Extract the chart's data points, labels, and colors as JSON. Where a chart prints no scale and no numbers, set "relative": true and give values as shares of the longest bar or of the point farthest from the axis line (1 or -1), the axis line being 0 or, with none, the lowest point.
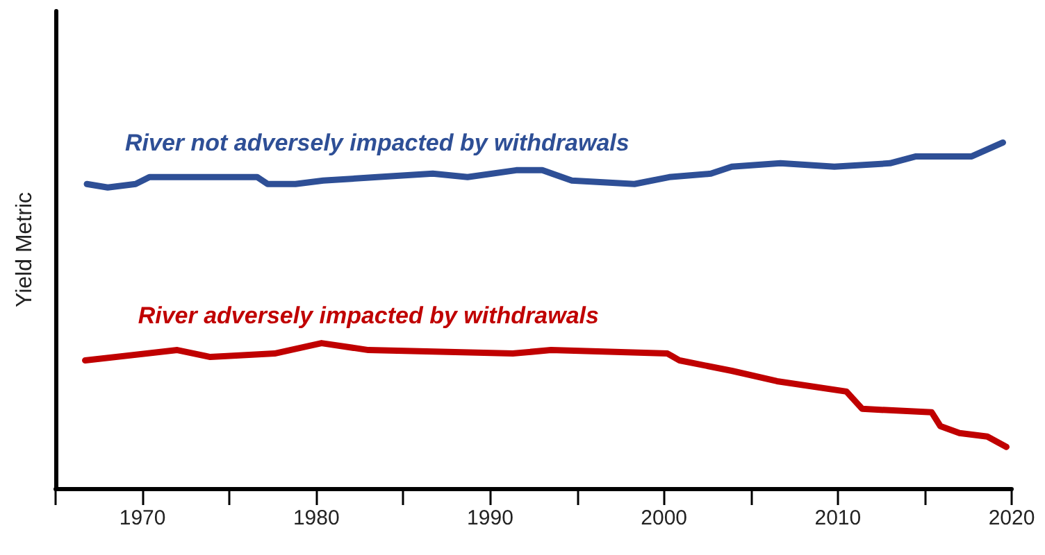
{
  "chart_data": {
    "type": "line",
    "ylabel": "Yield Metric",
    "relative": true,
    "xlim": [
      1965,
      2020
    ],
    "xticks": [
      {
        "value": 1965,
        "label": null
      },
      1970,
      {
        "value": 1975,
        "label": null
      },
      1980,
      {
        "value": 1985,
        "label": null
      },
      1990,
      {
        "value": 1995,
        "label": null
      },
      2000,
      {
        "value": 2005,
        "label": null
      },
      2010,
      {
        "value": 2015,
        "label": null
      },
      2020
    ],
    "marker": "none",
    "line_style": "solid",
    "grid": false,
    "legend": false,
    "series": [
      {
        "name": "River not adversely impacted by withdrawals",
        "color": "#2e4f96",
        "x": [
          1966.8,
          1968,
          1969.6,
          1970.4,
          1974,
          1976.6,
          1977.2,
          1978.8,
          1980.4,
          1983.5,
          1986.7,
          1988.7,
          1991.5,
          1993,
          1994.7,
          1998.3,
          2000.3,
          2002.7,
          2003.9,
          2006.7,
          2009.8,
          2013,
          2014.5,
          2017.7,
          2019.5
        ],
        "values": [
          0.88,
          0.87,
          0.88,
          0.9,
          0.9,
          0.9,
          0.88,
          0.88,
          0.89,
          0.9,
          0.91,
          0.9,
          0.92,
          0.92,
          0.89,
          0.88,
          0.9,
          0.91,
          0.93,
          0.94,
          0.93,
          0.94,
          0.96,
          0.96,
          1.0
        ]
      },
      {
        "name": "River adversely impacted by withdrawals",
        "color": "#c00000",
        "x": [
          1966.7,
          1972,
          1973.9,
          1977.6,
          1980.3,
          1983,
          1991.3,
          1993.5,
          2000.2,
          2000.9,
          2003.9,
          2006.5,
          2010.5,
          2011.4,
          2015.4,
          2015.9,
          2017,
          2018.6,
          2019.7
        ],
        "values": [
          0.37,
          0.4,
          0.38,
          0.39,
          0.42,
          0.4,
          0.39,
          0.4,
          0.39,
          0.37,
          0.34,
          0.31,
          0.28,
          0.23,
          0.22,
          0.18,
          0.16,
          0.15,
          0.12
        ]
      }
    ]
  }
}
